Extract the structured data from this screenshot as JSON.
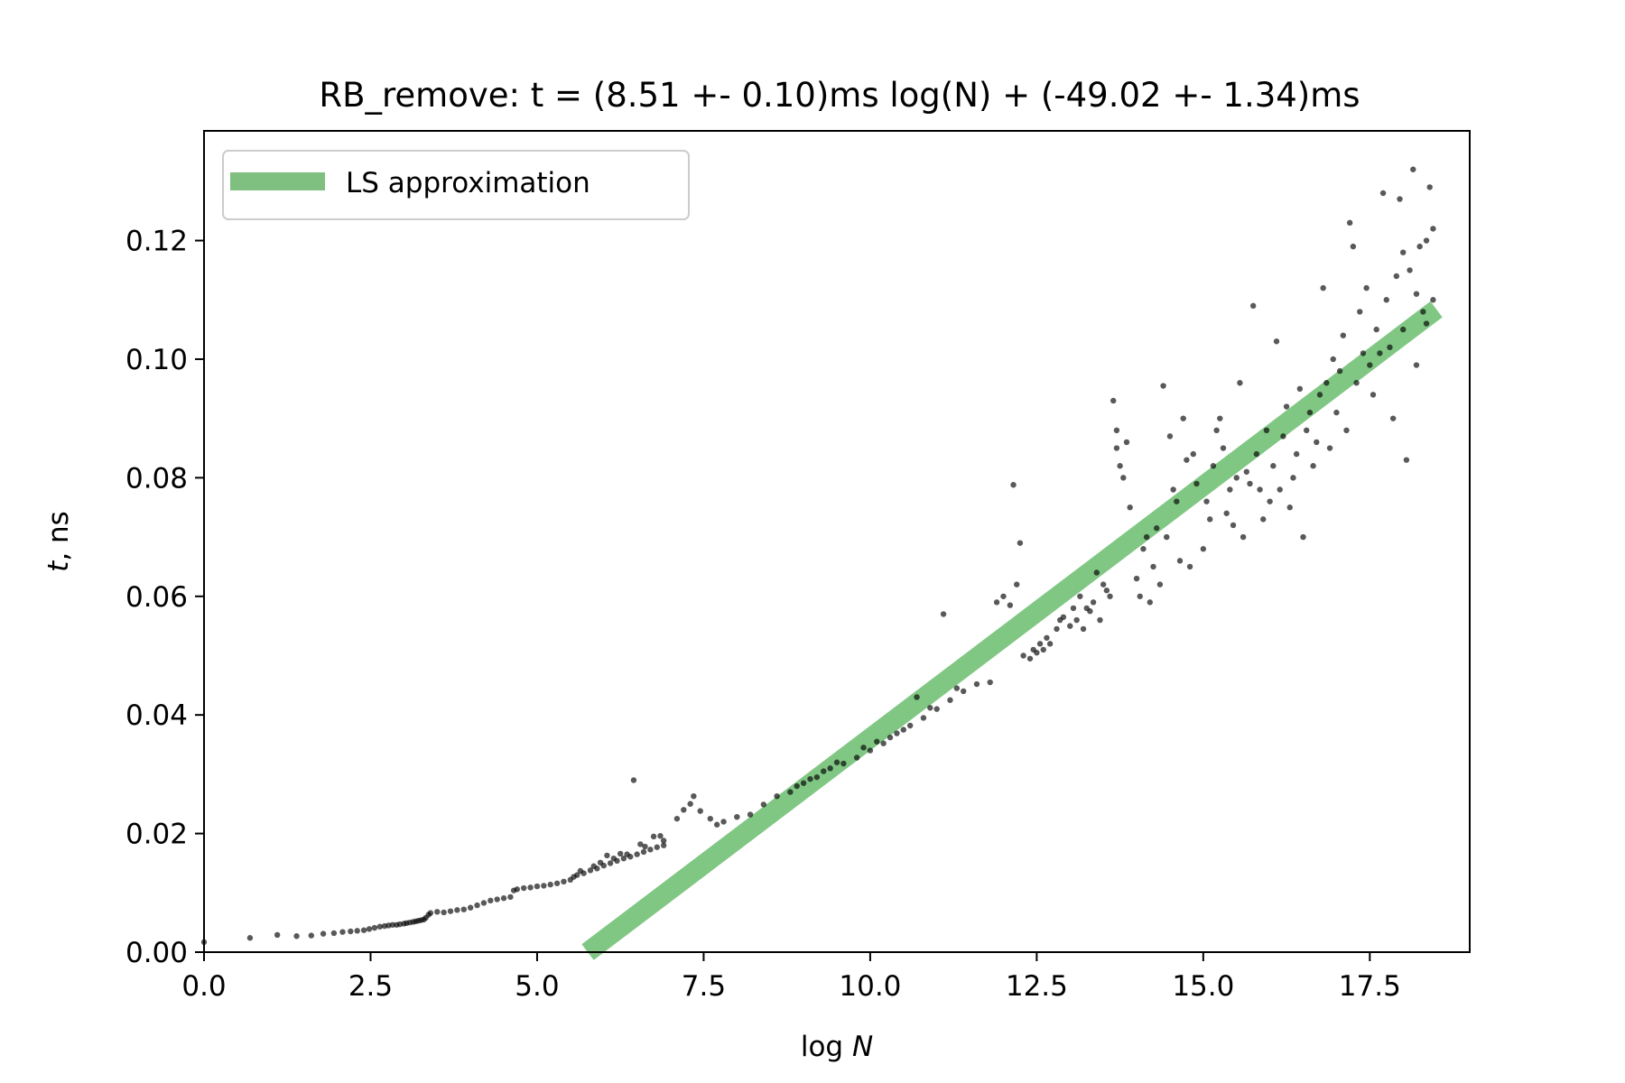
{
  "chart_data": {
    "type": "scatter",
    "title": "RB_remove: t = (8.51 +- 0.10)ms log(N) + (-49.02 +- 1.34)ms",
    "xlabel_prefix": "log ",
    "xlabel_var": "N",
    "ylabel_var": "t",
    "ylabel_suffix": ", ns",
    "xlim": [
      0,
      19
    ],
    "ylim": [
      0,
      0.1385
    ],
    "xticks": [
      0.0,
      2.5,
      5.0,
      7.5,
      10.0,
      12.5,
      15.0,
      17.5
    ],
    "xtick_labels": [
      "0.0",
      "2.5",
      "5.0",
      "7.5",
      "10.0",
      "12.5",
      "15.0",
      "17.5"
    ],
    "yticks": [
      0.0,
      0.02,
      0.04,
      0.06,
      0.08,
      0.1,
      0.12
    ],
    "ytick_labels": [
      "0.00",
      "0.02",
      "0.04",
      "0.06",
      "0.08",
      "0.10",
      "0.12"
    ],
    "grid": false,
    "legend_position": "top-left",
    "legend": [
      {
        "label": "LS approximation",
        "color": "#7fbf7f"
      }
    ],
    "fit_line": {
      "label": "LS approximation",
      "slope": 0.00851,
      "intercept": -0.04902,
      "x_range": [
        5.76,
        18.5
      ],
      "color": "#4caf50",
      "opacity": 0.7
    },
    "scatter_color": "#000000",
    "scatter": [
      [
        0.0,
        0.0017
      ],
      [
        0.69,
        0.0024
      ],
      [
        1.1,
        0.0029
      ],
      [
        1.39,
        0.0027
      ],
      [
        1.61,
        0.0028
      ],
      [
        1.79,
        0.0031
      ],
      [
        1.95,
        0.0032
      ],
      [
        2.08,
        0.0034
      ],
      [
        2.2,
        0.0035
      ],
      [
        2.3,
        0.0036
      ],
      [
        2.4,
        0.0037
      ],
      [
        2.48,
        0.0039
      ],
      [
        2.56,
        0.0041
      ],
      [
        2.64,
        0.0043
      ],
      [
        2.71,
        0.0044
      ],
      [
        2.77,
        0.0045
      ],
      [
        2.83,
        0.0046
      ],
      [
        2.89,
        0.0046
      ],
      [
        2.94,
        0.0047
      ],
      [
        3.0,
        0.0048
      ],
      [
        3.04,
        0.0049
      ],
      [
        3.09,
        0.005
      ],
      [
        3.14,
        0.0051
      ],
      [
        3.18,
        0.0052
      ],
      [
        3.22,
        0.0053
      ],
      [
        3.26,
        0.0054
      ],
      [
        3.3,
        0.0055
      ],
      [
        3.33,
        0.0058
      ],
      [
        3.37,
        0.0063
      ],
      [
        3.4,
        0.0066
      ],
      [
        3.5,
        0.0068
      ],
      [
        3.6,
        0.0067
      ],
      [
        3.7,
        0.0069
      ],
      [
        3.8,
        0.0071
      ],
      [
        3.9,
        0.0072
      ],
      [
        4.0,
        0.0075
      ],
      [
        4.1,
        0.0079
      ],
      [
        4.2,
        0.0083
      ],
      [
        4.3,
        0.0087
      ],
      [
        4.4,
        0.0089
      ],
      [
        4.5,
        0.0091
      ],
      [
        4.6,
        0.0093
      ],
      [
        4.65,
        0.0104
      ],
      [
        4.7,
        0.0106
      ],
      [
        4.8,
        0.0108
      ],
      [
        4.9,
        0.0109
      ],
      [
        5.0,
        0.0111
      ],
      [
        5.1,
        0.0112
      ],
      [
        5.2,
        0.0114
      ],
      [
        5.3,
        0.0116
      ],
      [
        5.4,
        0.0119
      ],
      [
        5.5,
        0.0122
      ],
      [
        5.55,
        0.0127
      ],
      [
        5.6,
        0.013
      ],
      [
        5.7,
        0.0133
      ],
      [
        5.8,
        0.0138
      ],
      [
        5.9,
        0.0141
      ],
      [
        6.0,
        0.0146
      ],
      [
        6.1,
        0.015
      ],
      [
        6.2,
        0.0154
      ],
      [
        6.3,
        0.0158
      ],
      [
        6.4,
        0.0161
      ],
      [
        6.5,
        0.0165
      ],
      [
        6.6,
        0.0169
      ],
      [
        6.7,
        0.0173
      ],
      [
        6.8,
        0.0177
      ],
      [
        6.9,
        0.018
      ],
      [
        6.45,
        0.029
      ],
      [
        6.9,
        0.0188
      ],
      [
        6.75,
        0.0195
      ],
      [
        6.55,
        0.0182
      ],
      [
        6.35,
        0.0165
      ],
      [
        6.15,
        0.0158
      ],
      [
        5.95,
        0.0151
      ],
      [
        6.25,
        0.0166
      ],
      [
        6.62,
        0.0178
      ],
      [
        6.85,
        0.0196
      ],
      [
        6.05,
        0.0163
      ],
      [
        5.85,
        0.0145
      ],
      [
        5.65,
        0.0137
      ],
      [
        7.1,
        0.0225
      ],
      [
        7.2,
        0.024
      ],
      [
        7.3,
        0.025
      ],
      [
        7.35,
        0.0263
      ],
      [
        7.45,
        0.0238
      ],
      [
        7.6,
        0.0225
      ],
      [
        7.7,
        0.0215
      ],
      [
        7.8,
        0.022
      ],
      [
        8.0,
        0.0228
      ],
      [
        8.2,
        0.0232
      ],
      [
        8.4,
        0.0249
      ],
      [
        8.6,
        0.0263
      ],
      [
        8.8,
        0.027
      ],
      [
        9.0,
        0.0285
      ],
      [
        9.2,
        0.0295
      ],
      [
        9.4,
        0.031
      ],
      [
        9.6,
        0.0318
      ],
      [
        9.8,
        0.0328
      ],
      [
        10.0,
        0.034
      ],
      [
        10.2,
        0.0352
      ],
      [
        10.4,
        0.0369
      ],
      [
        10.6,
        0.0382
      ],
      [
        10.8,
        0.0395
      ],
      [
        11.0,
        0.041
      ],
      [
        11.2,
        0.0425
      ],
      [
        11.4,
        0.044
      ],
      [
        11.6,
        0.0452
      ],
      [
        11.8,
        0.0455
      ],
      [
        9.1,
        0.0292
      ],
      [
        9.5,
        0.032
      ],
      [
        10.1,
        0.0355
      ],
      [
        10.5,
        0.0375
      ],
      [
        10.9,
        0.0412
      ],
      [
        11.3,
        0.0445
      ],
      [
        11.1,
        0.057
      ],
      [
        10.7,
        0.043
      ],
      [
        10.3,
        0.0362
      ],
      [
        9.9,
        0.0345
      ],
      [
        9.3,
        0.0305
      ],
      [
        8.9,
        0.028
      ],
      [
        11.9,
        0.059
      ],
      [
        12.0,
        0.06
      ],
      [
        12.1,
        0.0585
      ],
      [
        12.15,
        0.0788
      ],
      [
        12.2,
        0.062
      ],
      [
        12.25,
        0.069
      ],
      [
        12.3,
        0.05
      ],
      [
        12.4,
        0.0495
      ],
      [
        12.5,
        0.0505
      ],
      [
        12.6,
        0.051
      ],
      [
        12.7,
        0.052
      ],
      [
        12.8,
        0.0545
      ],
      [
        12.9,
        0.0565
      ],
      [
        13.0,
        0.055
      ],
      [
        13.1,
        0.056
      ],
      [
        13.2,
        0.0545
      ],
      [
        13.3,
        0.0575
      ],
      [
        13.4,
        0.064
      ],
      [
        13.5,
        0.062
      ],
      [
        13.6,
        0.06
      ],
      [
        13.7,
        0.085
      ],
      [
        13.75,
        0.082
      ],
      [
        13.8,
        0.08
      ],
      [
        13.65,
        0.093
      ],
      [
        13.7,
        0.088
      ],
      [
        13.85,
        0.086
      ],
      [
        13.9,
        0.075
      ],
      [
        14.0,
        0.063
      ],
      [
        14.1,
        0.068
      ],
      [
        14.15,
        0.07
      ],
      [
        14.2,
        0.059
      ],
      [
        14.3,
        0.0715
      ],
      [
        14.4,
        0.0955
      ],
      [
        14.5,
        0.087
      ],
      [
        14.6,
        0.076
      ],
      [
        14.7,
        0.09
      ],
      [
        14.75,
        0.083
      ],
      [
        14.8,
        0.065
      ],
      [
        14.9,
        0.079
      ],
      [
        15.0,
        0.068
      ],
      [
        15.1,
        0.073
      ],
      [
        15.2,
        0.088
      ],
      [
        15.25,
        0.09
      ],
      [
        15.3,
        0.085
      ],
      [
        15.4,
        0.078
      ],
      [
        15.5,
        0.08
      ],
      [
        15.55,
        0.096
      ],
      [
        15.6,
        0.07
      ],
      [
        15.7,
        0.079
      ],
      [
        15.75,
        0.109
      ],
      [
        15.8,
        0.084
      ],
      [
        15.9,
        0.073
      ],
      [
        16.0,
        0.076
      ],
      [
        16.1,
        0.103
      ],
      [
        16.2,
        0.087
      ],
      [
        16.3,
        0.075
      ],
      [
        16.4,
        0.084
      ],
      [
        16.5,
        0.07
      ],
      [
        16.6,
        0.091
      ],
      [
        16.7,
        0.086
      ],
      [
        16.8,
        0.112
      ],
      [
        16.9,
        0.085
      ],
      [
        17.0,
        0.091
      ],
      [
        17.1,
        0.104
      ],
      [
        17.2,
        0.123
      ],
      [
        17.25,
        0.119
      ],
      [
        17.3,
        0.096
      ],
      [
        17.4,
        0.101
      ],
      [
        17.5,
        0.099
      ],
      [
        17.6,
        0.105
      ],
      [
        17.7,
        0.128
      ],
      [
        17.75,
        0.11
      ],
      [
        17.8,
        0.102
      ],
      [
        17.9,
        0.114
      ],
      [
        17.95,
        0.127
      ],
      [
        18.0,
        0.105
      ],
      [
        18.05,
        0.083
      ],
      [
        18.1,
        0.115
      ],
      [
        18.15,
        0.132
      ],
      [
        18.2,
        0.099
      ],
      [
        18.25,
        0.119
      ],
      [
        18.3,
        0.108
      ],
      [
        18.35,
        0.12
      ],
      [
        18.4,
        0.129
      ],
      [
        18.45,
        0.122
      ],
      [
        17.85,
        0.09
      ],
      [
        17.55,
        0.094
      ],
      [
        17.15,
        0.088
      ],
      [
        16.95,
        0.1
      ],
      [
        16.45,
        0.095
      ],
      [
        12.45,
        0.051
      ],
      [
        12.55,
        0.052
      ],
      [
        12.65,
        0.053
      ],
      [
        12.85,
        0.056
      ],
      [
        13.05,
        0.058
      ],
      [
        13.15,
        0.06
      ],
      [
        13.35,
        0.059
      ],
      [
        13.45,
        0.056
      ],
      [
        13.55,
        0.061
      ],
      [
        13.25,
        0.058
      ],
      [
        14.05,
        0.06
      ],
      [
        14.25,
        0.065
      ],
      [
        14.35,
        0.062
      ],
      [
        14.45,
        0.07
      ],
      [
        14.55,
        0.078
      ],
      [
        14.65,
        0.066
      ],
      [
        14.85,
        0.084
      ],
      [
        15.05,
        0.076
      ],
      [
        15.15,
        0.082
      ],
      [
        15.35,
        0.074
      ],
      [
        15.45,
        0.072
      ],
      [
        15.65,
        0.081
      ],
      [
        15.85,
        0.078
      ],
      [
        15.95,
        0.088
      ],
      [
        16.05,
        0.082
      ],
      [
        16.15,
        0.078
      ],
      [
        16.25,
        0.092
      ],
      [
        16.35,
        0.08
      ],
      [
        16.55,
        0.088
      ],
      [
        16.65,
        0.082
      ],
      [
        16.75,
        0.094
      ],
      [
        16.85,
        0.096
      ],
      [
        17.05,
        0.098
      ],
      [
        17.35,
        0.108
      ],
      [
        17.45,
        0.112
      ],
      [
        17.65,
        0.101
      ],
      [
        18.0,
        0.118
      ],
      [
        18.2,
        0.111
      ],
      [
        18.35,
        0.106
      ],
      [
        18.45,
        0.11
      ]
    ]
  }
}
